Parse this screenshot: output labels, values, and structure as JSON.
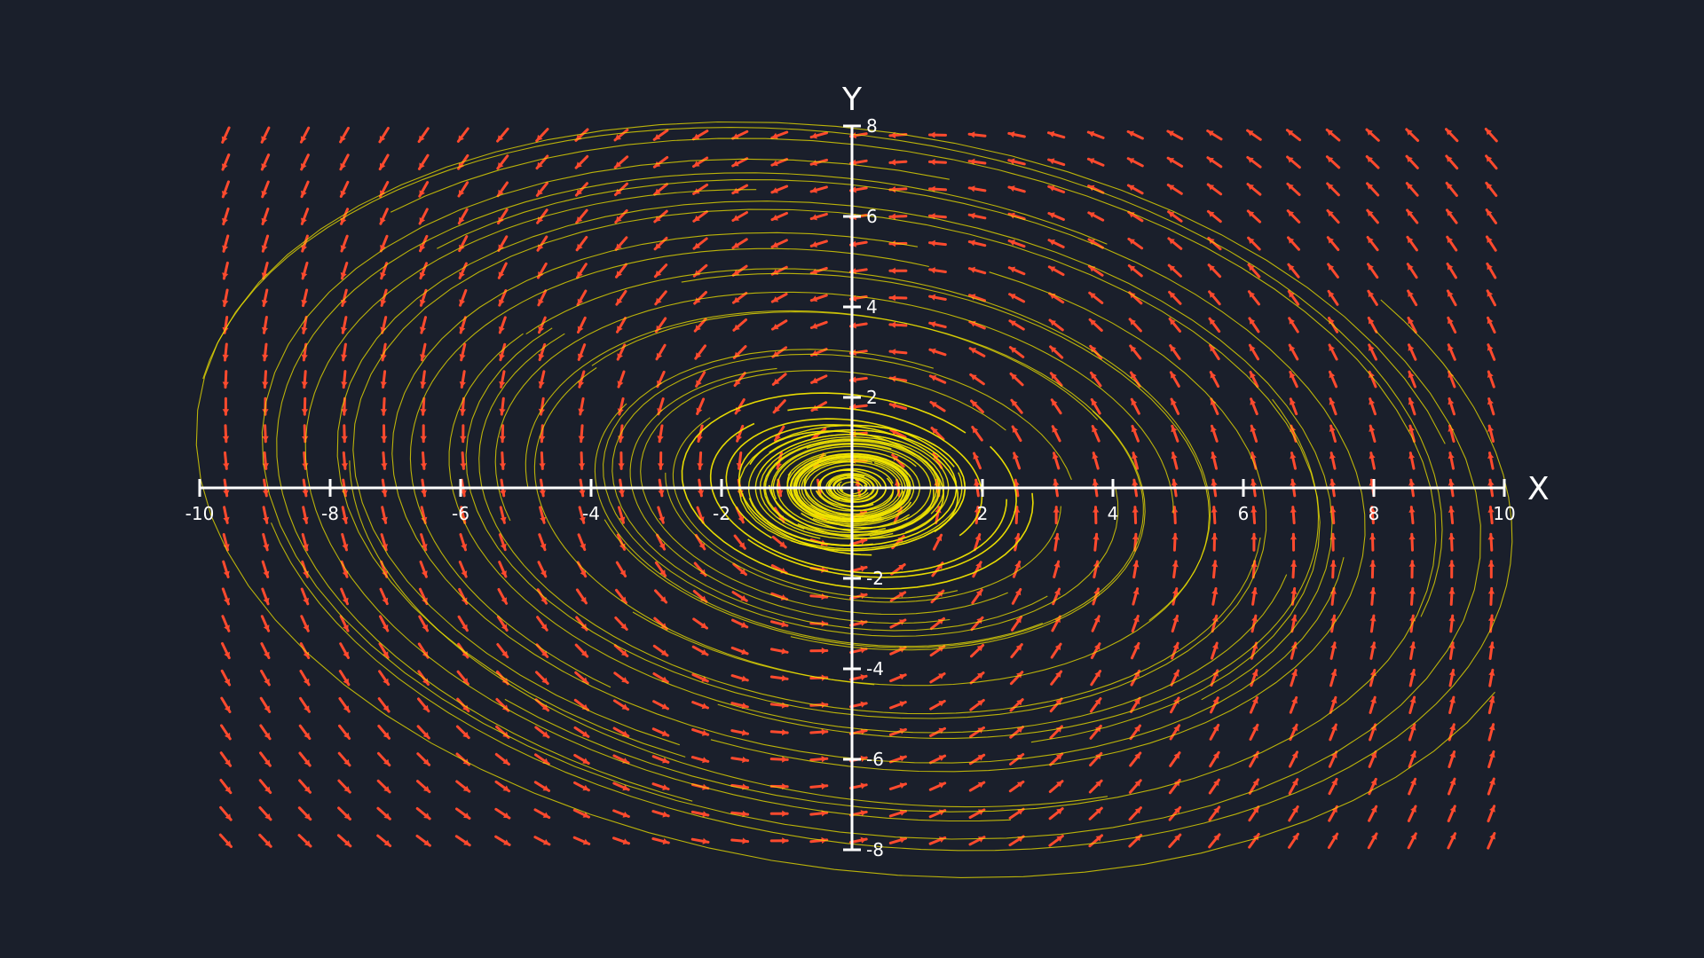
{
  "chart_data": {
    "type": "vector_field",
    "title": "",
    "xlabel": "X",
    "ylabel": "Y",
    "xlim": [
      -10,
      10
    ],
    "ylim": [
      -8,
      8
    ],
    "x_ticks": [
      -10,
      -8,
      -6,
      -4,
      -2,
      2,
      4,
      6,
      8,
      10
    ],
    "y_ticks": [
      -8,
      -6,
      -4,
      -2,
      2,
      4,
      6,
      8
    ],
    "x_tick_labels": [
      "-10",
      "-8",
      "-6",
      "-4",
      "-2",
      "2",
      "4",
      "6",
      "8",
      "10"
    ],
    "y_tick_labels": [
      "-8",
      "-6",
      "-4",
      "-2",
      "2",
      "4",
      "6",
      "8"
    ],
    "grid": false,
    "field": {
      "description_of_vectors": "rotational field spiraling around origin",
      "x_range": [
        -9.6,
        9.8
      ],
      "y_range": [
        -7.8,
        7.8
      ],
      "columns": 33,
      "rows": 27
    },
    "streamlines": {
      "center": [
        0,
        0
      ],
      "count": 48,
      "max_radius": 9.5
    }
  },
  "colors": {
    "background": "#1a1f2b",
    "axis": "#ffffff",
    "arrow": "#ff4a2e",
    "streamline": "#f2e600"
  }
}
